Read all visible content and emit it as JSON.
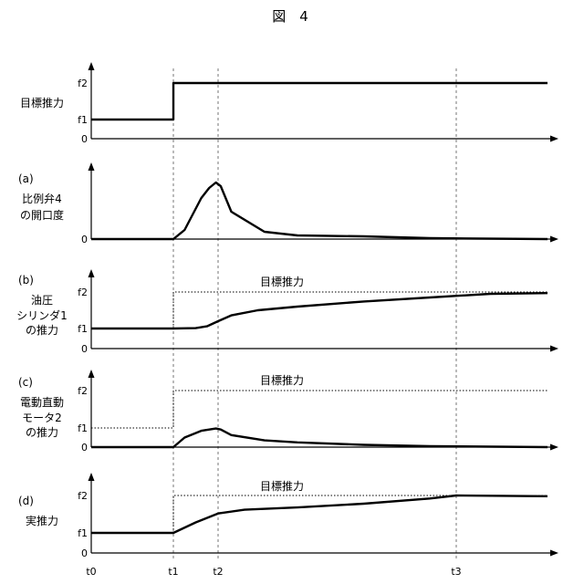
{
  "figure_title": "図　4",
  "chart_data": [
    {
      "type": "line",
      "ylabel": "目標推力",
      "ytick_labels": [
        "f2",
        "f1",
        "0"
      ],
      "series": [
        {
          "style": "solid",
          "values": [
            [
              0,
              1
            ],
            [
              1,
              1
            ],
            [
              1,
              2
            ],
            [
              4,
              2
            ]
          ]
        }
      ],
      "annotation": ""
    },
    {
      "type": "line",
      "ylabel_prefix": "(a)",
      "ylabel": "比例弁4\nの開口度",
      "ytick_labels": [
        "",
        "",
        "0"
      ],
      "series": [
        {
          "style": "solid",
          "values": [
            [
              0,
              0
            ],
            [
              1,
              0
            ],
            [
              1.1,
              0.1
            ],
            [
              1.25,
              0.45
            ],
            [
              1.32,
              0.56
            ],
            [
              1.38,
              0.62
            ],
            [
              1.42,
              0.58
            ],
            [
              1.5,
              0.3
            ],
            [
              1.75,
              0.08
            ],
            [
              2.0,
              0.04
            ],
            [
              2.5,
              0.03
            ],
            [
              3.0,
              0.01
            ],
            [
              4.0,
              0
            ]
          ]
        }
      ],
      "annotation": ""
    },
    {
      "type": "line",
      "ylabel_prefix": "(b)",
      "ylabel": "油圧\nシリンダ1\nの推力",
      "ytick_labels": [
        "f2",
        "f1",
        "0"
      ],
      "series": [
        {
          "style": "dotted",
          "values": [
            [
              1,
              1
            ],
            [
              1,
              2
            ],
            [
              4,
              2
            ]
          ]
        },
        {
          "style": "solid",
          "values": [
            [
              0,
              1
            ],
            [
              1,
              1
            ],
            [
              1.2,
              1.01
            ],
            [
              1.3,
              1.06
            ],
            [
              1.4,
              1.2
            ],
            [
              1.5,
              1.36
            ],
            [
              1.7,
              1.5
            ],
            [
              2.0,
              1.6
            ],
            [
              2.5,
              1.74
            ],
            [
              3.0,
              1.85
            ],
            [
              3.5,
              1.95
            ],
            [
              4.0,
              1.97
            ]
          ]
        }
      ],
      "annotation": "目標推力"
    },
    {
      "type": "line",
      "ylabel_prefix": "(c)",
      "ylabel": "電動直動\nモータ2\nの推力",
      "ytick_labels": [
        "f2",
        "f1",
        "0"
      ],
      "series": [
        {
          "style": "dotted",
          "values": [
            [
              0,
              1
            ],
            [
              1,
              1
            ],
            [
              1,
              2
            ],
            [
              4,
              2
            ]
          ]
        },
        {
          "style": "solid",
          "values": [
            [
              0,
              0
            ],
            [
              1,
              0
            ],
            [
              1.1,
              0.5
            ],
            [
              1.25,
              0.85
            ],
            [
              1.38,
              0.97
            ],
            [
              1.42,
              0.92
            ],
            [
              1.5,
              0.63
            ],
            [
              1.75,
              0.35
            ],
            [
              2.0,
              0.25
            ],
            [
              2.5,
              0.12
            ],
            [
              3.0,
              0.05
            ],
            [
              4.0,
              0
            ]
          ]
        }
      ],
      "annotation": "目標推力"
    },
    {
      "type": "line",
      "ylabel_prefix": "(d)",
      "ylabel": "実推力",
      "ytick_labels": [
        "f2",
        "f1",
        "0"
      ],
      "series": [
        {
          "style": "dotted",
          "values": [
            [
              1,
              1
            ],
            [
              1,
              2
            ],
            [
              4,
              2
            ]
          ]
        },
        {
          "style": "solid",
          "values": [
            [
              0,
              1
            ],
            [
              1,
              1
            ],
            [
              1.2,
              1.28
            ],
            [
              1.4,
              1.52
            ],
            [
              1.6,
              1.62
            ],
            [
              2.0,
              1.68
            ],
            [
              2.5,
              1.78
            ],
            [
              3.0,
              1.92
            ],
            [
              3.2,
              2.0
            ],
            [
              4.0,
              1.98
            ]
          ]
        }
      ],
      "annotation": "目標推力"
    }
  ],
  "time_labels": [
    "t0",
    "t1",
    "t2",
    "t3"
  ]
}
